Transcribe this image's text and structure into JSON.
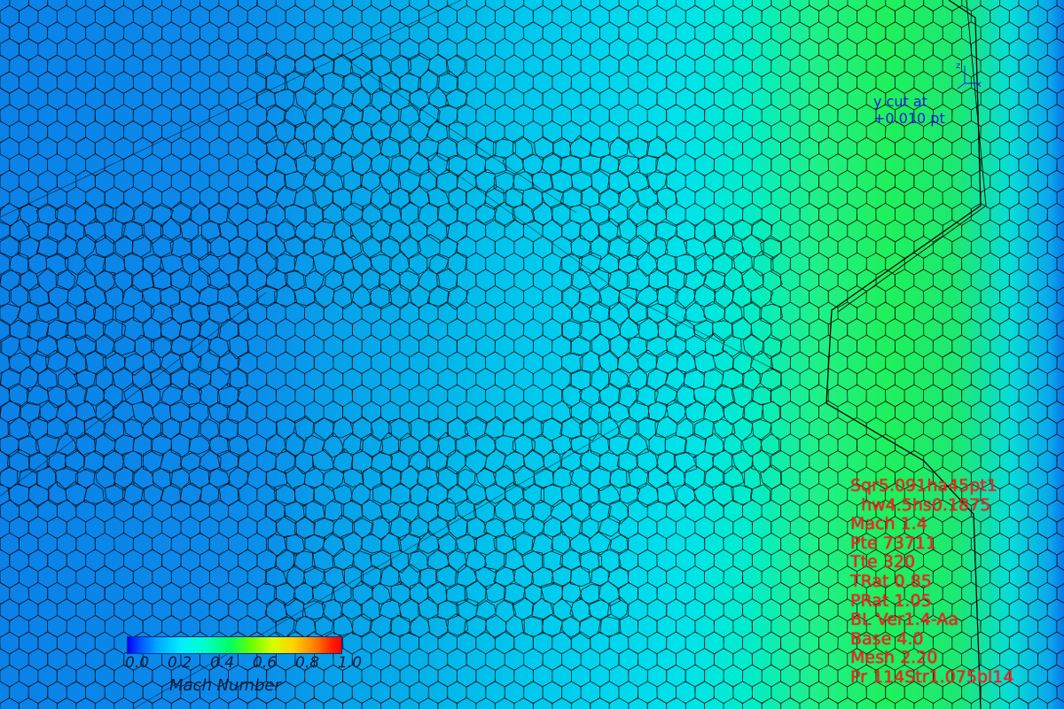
{
  "colors": {
    "annotation_red": "#ff1f1f",
    "cut_label_blue": "#1a1ae0",
    "mesh_line": "#000000"
  },
  "cut_label": {
    "line1": "y cut at",
    "line2": "+0.010 pt"
  },
  "triad": {
    "axis_z": "z",
    "axis_x": "x"
  },
  "run_parameters": [
    "Sqr5.091ha45pt1",
    "  hw4.5hs0.1875",
    "Mach 1.4",
    "Pte 73711",
    "Tte 320",
    "TRat 0.85",
    "PRat 1.05",
    "BL Ver1.4-Aa",
    "Base 4.0",
    "Mesh 2.20",
    "Pr 114Str1.075bl14"
  ],
  "colorbar": {
    "title": "Mach Number",
    "min": 0.0,
    "max": 1.0,
    "ticks": [
      "0.0",
      "0.2",
      "0.4",
      "0.6",
      "0.8",
      "1.0"
    ],
    "colormap": "rainbow (blue-cyan-green-yellow-red)"
  }
}
